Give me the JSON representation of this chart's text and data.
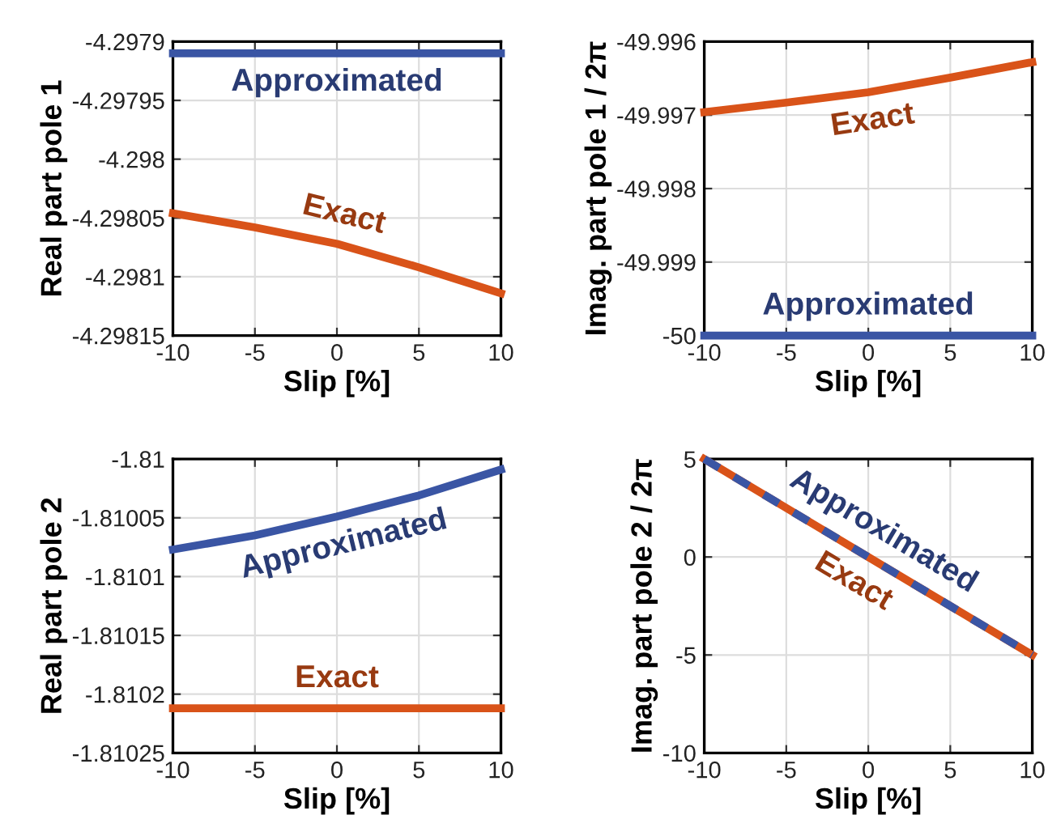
{
  "chart_data": [
    {
      "type": "line",
      "xlabel": "Slip [%]",
      "ylabel": "Real part pole 1",
      "x": [
        -10,
        -5,
        0,
        5,
        10
      ],
      "xlim": [
        -10,
        10
      ],
      "xticks": [
        -10,
        -5,
        0,
        5,
        10
      ],
      "ylim": [
        -4.29815,
        -4.2979
      ],
      "yticks": [
        -4.29815,
        -4.2981,
        -4.29805,
        -4.298,
        -4.29795,
        -4.2979
      ],
      "grid": true,
      "line_style": "solid",
      "series": [
        {
          "name": "Exact",
          "color": "#d95319",
          "values": [
            -4.298046,
            -4.298058,
            -4.298072,
            -4.298092,
            -4.298114
          ]
        },
        {
          "name": "Approximated",
          "color": "#3a55a4",
          "values": [
            -4.29791,
            -4.29791,
            -4.29791,
            -4.29791,
            -4.29791
          ]
        }
      ]
    },
    {
      "type": "line",
      "xlabel": "Slip [%]",
      "ylabel": "Imag. part pole 1 / 2π",
      "x": [
        -10,
        -5,
        0,
        5,
        10
      ],
      "xlim": [
        -10,
        10
      ],
      "xticks": [
        -10,
        -5,
        0,
        5,
        10
      ],
      "ylim": [
        -50,
        -49.996
      ],
      "yticks": [
        -50,
        -49.999,
        -49.998,
        -49.997,
        -49.996
      ],
      "grid": true,
      "line_style": "solid",
      "series": [
        {
          "name": "Exact",
          "color": "#d95319",
          "values": [
            -49.99696,
            -49.99683,
            -49.99669,
            -49.99649,
            -49.99628
          ]
        },
        {
          "name": "Approximated",
          "color": "#3a55a4",
          "values": [
            -50,
            -50,
            -50,
            -50,
            -50
          ]
        }
      ]
    },
    {
      "type": "line",
      "xlabel": "Slip [%]",
      "ylabel": "Real part pole 2",
      "x": [
        -10,
        -5,
        0,
        5,
        10
      ],
      "xlim": [
        -10,
        10
      ],
      "xticks": [
        -10,
        -5,
        0,
        5,
        10
      ],
      "ylim": [
        -1.81025,
        -1.81
      ],
      "yticks": [
        -1.81025,
        -1.8102,
        -1.81015,
        -1.8101,
        -1.81005,
        -1.81
      ],
      "grid": true,
      "line_style": "solid",
      "series": [
        {
          "name": "Approximated",
          "color": "#3a55a4",
          "values": [
            -1.810077,
            -1.810065,
            -1.810049,
            -1.810031,
            -1.810009
          ]
        },
        {
          "name": "Exact",
          "color": "#d95319",
          "values": [
            -1.810212,
            -1.810212,
            -1.810212,
            -1.810212,
            -1.810212
          ]
        }
      ]
    },
    {
      "type": "line",
      "xlabel": "Slip [%]",
      "ylabel": "Imag. part pole 2 / 2π",
      "x": [
        -10,
        -5,
        0,
        5,
        10
      ],
      "xlim": [
        -10,
        10
      ],
      "xticks": [
        -10,
        -5,
        0,
        5,
        10
      ],
      "ylim": [
        -10,
        5
      ],
      "yticks": [
        -10,
        -5,
        0,
        5
      ],
      "grid": true,
      "series": [
        {
          "name": "Exact",
          "color": "#d95319",
          "line_style": "solid",
          "values": [
            5,
            2.5,
            0,
            -2.5,
            -5
          ]
        },
        {
          "name": "Approximated",
          "color": "#3a55a4",
          "line_style": "dashed",
          "values": [
            5,
            2.5,
            0,
            -2.5,
            -5
          ]
        }
      ]
    }
  ]
}
